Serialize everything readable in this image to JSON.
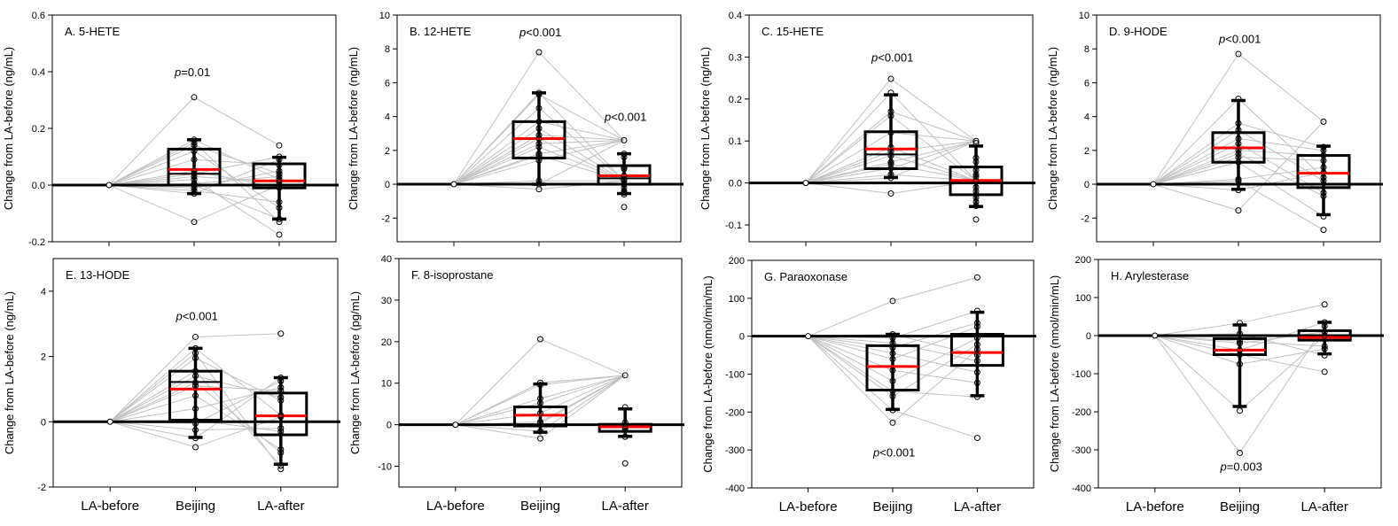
{
  "chart_data": [
    {
      "type": "box",
      "title": "A. 5-HETE",
      "ylabel": "Change from LA-before (ng/mL)",
      "ylim": [
        -0.2,
        0.6
      ],
      "yticks": [
        -0.2,
        0.0,
        0.2,
        0.4,
        0.6
      ],
      "ytick_labels": [
        "-0.2",
        "0.0",
        "0.2",
        "0.4",
        "0.6"
      ],
      "categories": [
        "LA-before",
        "Beijing",
        "LA-after"
      ],
      "show_category_labels": false,
      "annotations": [
        {
          "text": "=0.01",
          "category": "Beijing",
          "y": 0.4
        }
      ],
      "boxes": [
        {
          "category": "Beijing",
          "q1": 0.0,
          "median": 0.04,
          "mean": 0.055,
          "q3": 0.127,
          "whisker_low": -0.03,
          "whisker_high": 0.16
        },
        {
          "category": "LA-after",
          "q1": -0.01,
          "median": 0.015,
          "mean": 0.015,
          "q3": 0.075,
          "whisker_low": -0.12,
          "whisker_high": 0.098
        }
      ],
      "paired_points": {
        "Beijing": [
          0.31,
          0.16,
          0.15,
          0.14,
          0.12,
          0.09,
          0.05,
          0.04,
          0.03,
          0.02,
          0.005,
          0.0,
          -0.01,
          -0.02,
          -0.03,
          -0.13
        ],
        "LA-after": [
          0.14,
          0.1,
          0.09,
          0.07,
          0.05,
          0.04,
          0.03,
          0.02,
          0.01,
          0.0,
          -0.01,
          -0.06,
          -0.08,
          -0.12,
          -0.13,
          -0.175
        ]
      }
    },
    {
      "type": "box",
      "title": "B. 12-HETE",
      "ylabel": "Change from LA-before (ng/mL)",
      "ylim": [
        -3.4,
        10
      ],
      "yticks": [
        -2,
        0,
        2,
        4,
        6,
        8,
        10
      ],
      "ytick_labels": [
        "-2",
        "0",
        "2",
        "4",
        "6",
        "8",
        "10"
      ],
      "categories": [
        "LA-before",
        "Beijing",
        "LA-after"
      ],
      "show_category_labels": false,
      "annotations": [
        {
          "text": "<0.001",
          "category": "Beijing",
          "y": 9.0
        },
        {
          "text": "<0.001",
          "category": "LA-after",
          "y": 4.0
        }
      ],
      "boxes": [
        {
          "category": "Beijing",
          "q1": 1.55,
          "median": 2.7,
          "mean": 2.7,
          "q3": 3.7,
          "whisker_low": 0.0,
          "whisker_high": 5.4
        },
        {
          "category": "LA-after",
          "q1": 0.0,
          "median": 0.35,
          "mean": 0.5,
          "q3": 1.1,
          "whisker_low": -0.55,
          "whisker_high": 1.8
        }
      ],
      "paired_points": {
        "Beijing": [
          7.8,
          5.4,
          5.3,
          4.5,
          3.7,
          3.3,
          2.9,
          2.7,
          2.4,
          2.2,
          1.8,
          1.7,
          1.4,
          0.2,
          0.0,
          -0.3
        ],
        "LA-after": [
          2.6,
          1.8,
          1.6,
          1.0,
          0.9,
          0.5,
          0.3,
          0.2,
          0.0,
          -0.2,
          -0.4,
          -0.5,
          -0.6,
          -1.35
        ]
      }
    },
    {
      "type": "box",
      "title": "C. 15-HETE",
      "ylabel": "Change from LA-before (ng/mL)",
      "ylim": [
        -0.14,
        0.4
      ],
      "yticks": [
        -0.1,
        0.0,
        0.1,
        0.2,
        0.3,
        0.4
      ],
      "ytick_labels": [
        "-0.1",
        "0.0",
        "0.1",
        "0.2",
        "0.3",
        "0.4"
      ],
      "categories": [
        "LA-before",
        "Beijing",
        "LA-after"
      ],
      "show_category_labels": false,
      "annotations": [
        {
          "text": "<0.001",
          "category": "Beijing",
          "y": 0.3
        }
      ],
      "boxes": [
        {
          "category": "Beijing",
          "q1": 0.034,
          "median": 0.068,
          "mean": 0.081,
          "q3": 0.122,
          "whisker_low": 0.013,
          "whisker_high": 0.21
        },
        {
          "category": "LA-after",
          "q1": -0.028,
          "median": 0.0,
          "mean": 0.006,
          "q3": 0.038,
          "whisker_low": -0.056,
          "whisker_high": 0.088
        },
        {
          "category": "LA-before",
          "hidden": true
        }
      ],
      "paired_points": {
        "Beijing": [
          0.248,
          0.215,
          0.17,
          0.16,
          0.12,
          0.085,
          0.075,
          0.065,
          0.05,
          0.045,
          0.035,
          0.02,
          0.012,
          -0.025
        ],
        "LA-after": [
          0.1,
          0.095,
          0.06,
          0.05,
          0.03,
          0.02,
          0.015,
          0.005,
          -0.01,
          -0.02,
          -0.035,
          -0.045,
          -0.055,
          -0.087
        ]
      }
    },
    {
      "type": "box",
      "title": "D. 9-HODE",
      "ylabel": "Change from LA-before (ng/mL)",
      "ylim": [
        -3.4,
        10
      ],
      "yticks": [
        -2,
        0,
        2,
        4,
        6,
        8,
        10
      ],
      "ytick_labels": [
        "-2",
        "0",
        "2",
        "4",
        "6",
        "8",
        "10"
      ],
      "categories": [
        "LA-before",
        "Beijing",
        "LA-after"
      ],
      "show_category_labels": false,
      "annotations": [
        {
          "text": "<0.001",
          "category": "Beijing",
          "y": 8.6
        }
      ],
      "boxes": [
        {
          "category": "Beijing",
          "q1": 1.3,
          "median": 2.15,
          "mean": 2.15,
          "q3": 3.05,
          "whisker_low": -0.3,
          "whisker_high": 4.95
        },
        {
          "category": "LA-after",
          "q1": -0.2,
          "median": 0.65,
          "mean": 0.65,
          "q3": 1.7,
          "whisker_low": -1.8,
          "whisker_high": 2.25
        }
      ],
      "paired_points": {
        "Beijing": [
          7.7,
          5.05,
          3.6,
          3.2,
          2.7,
          2.4,
          2.0,
          1.8,
          1.6,
          1.3,
          0.3,
          0.2,
          -0.35,
          -1.55
        ],
        "LA-after": [
          3.7,
          2.2,
          2.0,
          1.7,
          1.4,
          1.0,
          0.7,
          0.4,
          0.2,
          -0.5,
          -0.7,
          -1.9,
          -2.7
        ]
      }
    },
    {
      "type": "box",
      "title": "E. 13-HODE",
      "ylabel": "Change from LA-before (ng/mL)",
      "ylim": [
        -2,
        5
      ],
      "yticks": [
        -2,
        0,
        2,
        4
      ],
      "ytick_labels": [
        "-2",
        "0",
        "2",
        "4"
      ],
      "categories": [
        "LA-before",
        "Beijing",
        "LA-after"
      ],
      "show_category_labels": true,
      "annotations": [
        {
          "text": "<0.001",
          "category": "Beijing",
          "y": 3.25
        }
      ],
      "boxes": [
        {
          "category": "Beijing",
          "q1": 0.05,
          "median": 1.22,
          "mean": 1.0,
          "q3": 1.55,
          "whisker_low": -0.48,
          "whisker_high": 2.25
        },
        {
          "category": "LA-after",
          "q1": -0.4,
          "median": 0.18,
          "mean": 0.18,
          "q3": 0.88,
          "whisker_low": -1.3,
          "whisker_high": 1.35
        }
      ],
      "paired_points": {
        "Beijing": [
          2.6,
          2.25,
          2.1,
          1.95,
          1.55,
          1.4,
          1.2,
          1.1,
          0.8,
          0.4,
          0.05,
          -0.05,
          -0.25,
          -0.5,
          -0.78
        ],
        "LA-after": [
          2.7,
          1.35,
          1.25,
          1.05,
          0.95,
          0.75,
          0.65,
          0.2,
          0.15,
          -0.2,
          -0.3,
          -0.85,
          -0.95,
          -1.35,
          -1.45
        ]
      }
    },
    {
      "type": "box",
      "title": "F. 8-isoprostane",
      "ylabel": "Change from LA-before (pg/mL)",
      "ylim": [
        -15,
        40
      ],
      "yticks": [
        -10,
        0,
        10,
        20,
        30,
        40
      ],
      "ytick_labels": [
        "-10",
        "0",
        "10",
        "20",
        "30",
        "40"
      ],
      "categories": [
        "LA-before",
        "Beijing",
        "LA-after"
      ],
      "show_category_labels": true,
      "annotations": [],
      "boxes": [
        {
          "category": "Beijing",
          "q1": -0.3,
          "median": -0.3,
          "mean": 2.3,
          "q3": 4.3,
          "whisker_low": -1.8,
          "whisker_high": 9.8
        },
        {
          "category": "LA-after",
          "q1": -1.6,
          "median": 0.1,
          "mean": -0.5,
          "q3": 0.1,
          "whisker_low": -2.8,
          "whisker_high": 3.8
        }
      ],
      "paired_points": {
        "Beijing": [
          20.6,
          10.1,
          9.6,
          6.3,
          5.2,
          2.8,
          0.7,
          0.3,
          -1.6,
          -3.3
        ],
        "LA-after": [
          11.9,
          4.2,
          0.6,
          -0.6,
          -1.0,
          -2.9,
          -9.3
        ]
      }
    },
    {
      "type": "box",
      "title": "G. Paraoxonase",
      "ylabel": "Change from LA-before (nmol/min/mL)",
      "ylim": [
        -400,
        200
      ],
      "yticks": [
        -400,
        -300,
        -200,
        -100,
        0,
        100,
        200
      ],
      "ytick_labels": [
        "-400",
        "-300",
        "-200",
        "-100",
        "0",
        "100",
        "200"
      ],
      "categories": [
        "LA-before",
        "Beijing",
        "LA-after"
      ],
      "show_category_labels": true,
      "annotations": [
        {
          "text": "<0.001",
          "category": "Beijing",
          "y": -305
        }
      ],
      "boxes": [
        {
          "category": "Beijing",
          "q1": -142,
          "median": -80,
          "mean": -80,
          "q3": -25,
          "whisker_low": -193,
          "whisker_high": 5
        },
        {
          "category": "LA-after",
          "q1": -77,
          "median": -43,
          "mean": -43,
          "q3": 5,
          "whisker_low": -157,
          "whisker_high": 63
        }
      ],
      "paired_points": {
        "Beijing": [
          93,
          5,
          -5,
          -18,
          -30,
          -45,
          -60,
          -90,
          -118,
          -145,
          -158,
          -195,
          -228
        ],
        "LA-after": [
          155,
          67,
          35,
          25,
          -5,
          -22,
          -35,
          -50,
          -65,
          -95,
          -123,
          -160,
          -268
        ]
      }
    },
    {
      "type": "box",
      "title": "H. Arylesterase",
      "ylabel": "Change from LA-before (nmol/min/mL)",
      "ylim": [
        -400,
        200
      ],
      "yticks": [
        -400,
        -300,
        -200,
        -100,
        0,
        100,
        200
      ],
      "ytick_labels": [
        "-400",
        "-300",
        "-200",
        "-100",
        "0",
        "100",
        "200"
      ],
      "categories": [
        "LA-before",
        "Beijing",
        "LA-after"
      ],
      "show_category_labels": true,
      "annotations": [
        {
          "text": "=0.003",
          "category": "Beijing",
          "y": -343
        }
      ],
      "boxes": [
        {
          "category": "Beijing",
          "q1": -50,
          "median": -8,
          "mean": -38,
          "q3": -8,
          "whisker_low": -186,
          "whisker_high": 28
        },
        {
          "category": "LA-after",
          "q1": -12,
          "median": -5,
          "mean": -5,
          "q3": 13,
          "whisker_low": -48,
          "whisker_high": 35
        }
      ],
      "paired_points": {
        "Beijing": [
          33,
          5,
          -15,
          -20,
          -38,
          -50,
          -75,
          -197,
          -308
        ],
        "LA-after": [
          82,
          35,
          25,
          10,
          0,
          -28,
          -35,
          -52,
          -95
        ]
      }
    }
  ],
  "p_symbol": "p"
}
